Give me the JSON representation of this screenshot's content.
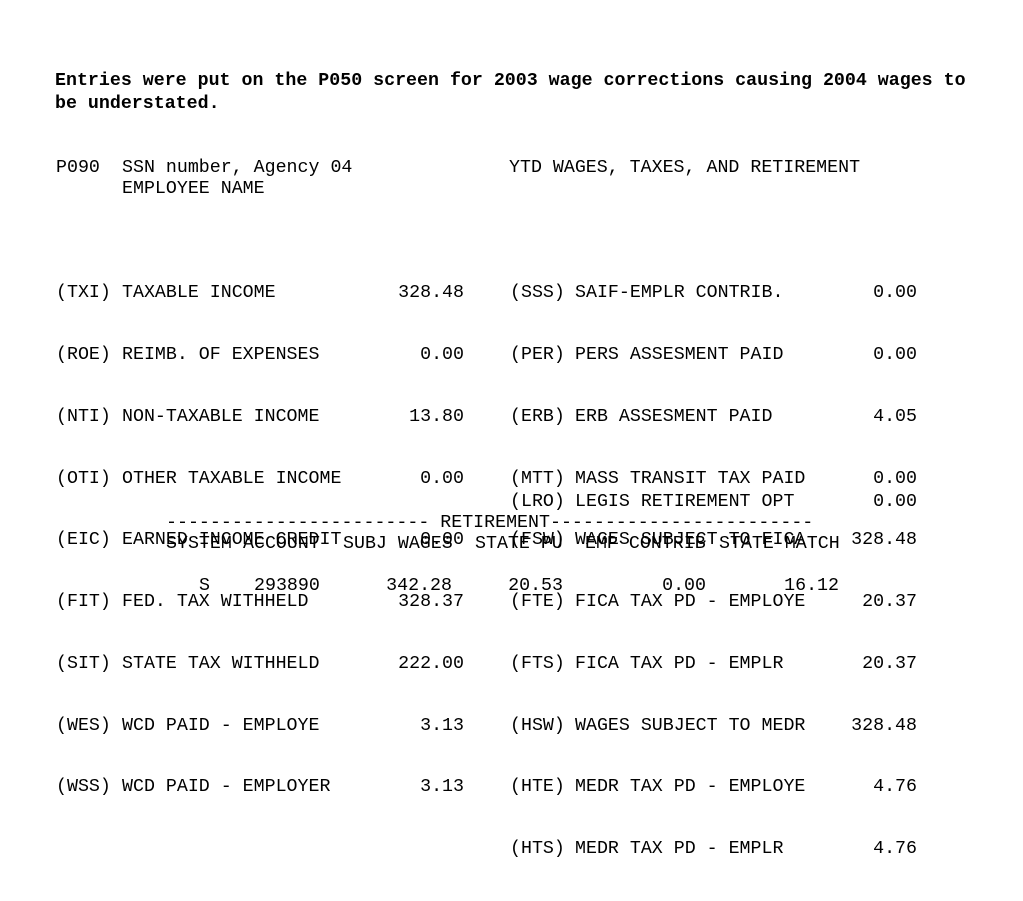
{
  "note": "Entries were put on the P050 screen for 2003 wage corrections causing 2004 wages to be understated.",
  "screen": {
    "code": "P090",
    "ssn_agency": "SSN number, Agency 04",
    "employee_name": "EMPLOYEE NAME",
    "title": "YTD WAGES, TAXES, AND RETIREMENT"
  },
  "left_items": [
    {
      "code": "(TXI)",
      "label": "TAXABLE INCOME",
      "value": "328.48"
    },
    {
      "code": "(ROE)",
      "label": "REIMB. OF EXPENSES",
      "value": "0.00"
    },
    {
      "code": "(NTI)",
      "label": "NON-TAXABLE INCOME",
      "value": "13.80"
    },
    {
      "code": "(OTI)",
      "label": "OTHER TAXABLE INCOME",
      "value": "0.00"
    },
    {
      "code": "(EIC)",
      "label": "EARNED INCOME CREDIT",
      "value": "0.00"
    },
    {
      "code": "(FIT)",
      "label": "FED. TAX WITHHELD",
      "value": "328.37"
    },
    {
      "code": "(SIT)",
      "label": "STATE TAX WITHHELD",
      "value": "222.00"
    },
    {
      "code": "(WES)",
      "label": "WCD PAID - EMPLOYE",
      "value": "3.13"
    },
    {
      "code": "(WSS)",
      "label": "WCD PAID - EMPLOYER",
      "value": "3.13"
    }
  ],
  "right_items": [
    {
      "code": "(SSS)",
      "label": "SAIF-EMPLR CONTRIB.",
      "value": "0.00"
    },
    {
      "code": "(PER)",
      "label": "PERS ASSESMENT PAID",
      "value": "0.00"
    },
    {
      "code": "(ERB)",
      "label": "ERB ASSESMENT PAID",
      "value": "4.05"
    },
    {
      "code": "(MTT)",
      "label": "MASS TRANSIT TAX PAID",
      "value": "0.00"
    },
    {
      "code": "(FSW)",
      "label": "WAGES SUBJECT TO FICA",
      "value": "328.48"
    },
    {
      "code": "(FTE)",
      "label": "FICA TAX PD - EMPLOYE",
      "value": "20.37"
    },
    {
      "code": "(FTS)",
      "label": "FICA TAX PD - EMPLR",
      "value": "20.37"
    },
    {
      "code": "(HSW)",
      "label": "WAGES SUBJECT TO MEDR",
      "value": "328.48"
    },
    {
      "code": "(HTE)",
      "label": "MEDR TAX PD - EMPLOYE",
      "value": "4.76"
    },
    {
      "code": "(HTS)",
      "label": "MEDR TAX PD - EMPLR",
      "value": "4.76"
    }
  ],
  "lro": {
    "code": "(LRO)",
    "label": "LEGIS RETIREMENT OPT",
    "value": "0.00"
  },
  "retirement": {
    "divider": "------------------------ RETIREMENT------------------------",
    "headers": {
      "system": "SYSTEM",
      "account": "ACCOUNT",
      "subj_wages": "SUBJ WAGES",
      "state_pu": "STATE PU",
      "emp_contrib": "EMP CONTRIB",
      "state_match": "STATE MATCH"
    },
    "row": {
      "system": "S",
      "account": "293890",
      "subj_wages": "342.28",
      "state_pu": "20.53",
      "emp_contrib": "0.00",
      "state_match": "16.12"
    }
  }
}
